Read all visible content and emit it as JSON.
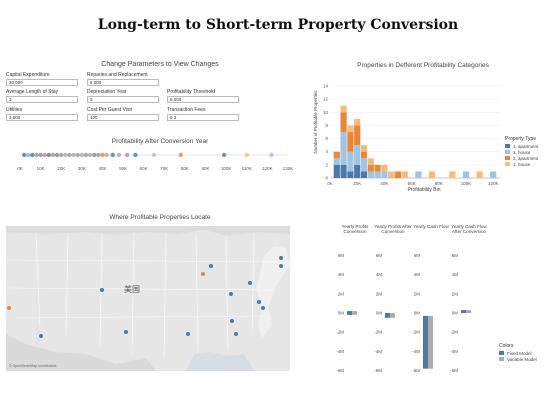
{
  "title": "Long-term to Short-term Property Conversion",
  "params": {
    "heading": "Change Parameters to View Changes",
    "fields": [
      {
        "label": "Capital Expenditure",
        "value": "30,000"
      },
      {
        "label": "Reparies and Replacement",
        "value": "6,000"
      },
      {
        "label": "Average Length of Stay",
        "value": "3"
      },
      {
        "label": "Depreciation Year",
        "value": "5"
      },
      {
        "label": "Profitability Threshold",
        "value": "8,000"
      },
      {
        "label": "Utilities",
        "value": "3,600"
      },
      {
        "label": "Cost Per Guest Visit",
        "value": "100"
      },
      {
        "label": "Transaction Fees",
        "value": "0.3"
      }
    ]
  },
  "strip": {
    "heading": "Profitability After Conversion Year",
    "ticks": [
      "0K",
      "10K",
      "20K",
      "30K",
      "40K",
      "50K",
      "60K",
      "70K",
      "80K",
      "90K",
      "100K",
      "110K",
      "120K",
      "130K"
    ]
  },
  "histogram": {
    "heading": "Properties in Defferent Profitability Categories",
    "ylabel": "Number of Profitable Properties",
    "xlabel": "Profitability Bin",
    "legend_title": "Property Type",
    "legend": [
      {
        "name": "1, apartment",
        "color": "#4e79a7"
      },
      {
        "name": "1, house",
        "color": "#a0c4e4"
      },
      {
        "name": "2, apartment",
        "color": "#e8873a"
      },
      {
        "name": "2, house",
        "color": "#f5bb7c"
      }
    ],
    "yticks": [
      "0",
      "2",
      "4",
      "6",
      "8",
      "10",
      "12",
      "14"
    ],
    "xticks": [
      "0K",
      "20K",
      "40K",
      "60K",
      "80K",
      "100K",
      "120K"
    ]
  },
  "map": {
    "heading": "Where Profitable Properties Locate",
    "country_label": "美国",
    "attribution": "© OpenStreetMap contributors"
  },
  "cashflow": {
    "columns": [
      "Yearly Profits Conversion",
      "Yearly Profits After Conversion",
      "Yearly Cash Flow",
      "Yearly Cash Flow After Conversion"
    ],
    "yticks": [
      "6M",
      "4M",
      "2M",
      "0M",
      "-2M",
      "-4M",
      "-6M"
    ],
    "legend_title": "Colors",
    "legend": [
      {
        "name": "Fixed Model",
        "color": "#4e79a7"
      },
      {
        "name": "Variable Model",
        "color": "#b0aaa6"
      }
    ]
  },
  "chart_data": [
    {
      "type": "bar",
      "title": "Properties in Defferent Profitability Categories",
      "xlabel": "Profitability Bin",
      "ylabel": "Number of Profitable Properties",
      "ylim": [
        0,
        14
      ],
      "x": [
        5000,
        10000,
        15000,
        20000,
        25000,
        30000,
        35000,
        40000,
        45000,
        50000,
        55000,
        65000,
        75000,
        90000,
        100000,
        110000,
        120000
      ],
      "series": [
        {
          "name": "1, apartment",
          "values": [
            2,
            2,
            1,
            2,
            1,
            0,
            0,
            0,
            0,
            0,
            0,
            0,
            0,
            0,
            0,
            0,
            0
          ]
        },
        {
          "name": "1, house",
          "values": [
            1,
            5,
            3,
            3,
            2,
            1,
            1,
            1,
            0,
            0,
            0,
            1,
            0,
            0,
            1,
            0,
            1
          ]
        },
        {
          "name": "2, apartment",
          "values": [
            1,
            3,
            3,
            3,
            1,
            1,
            1,
            0,
            0,
            1,
            0,
            0,
            0,
            0,
            0,
            0,
            0
          ]
        },
        {
          "name": "2, house",
          "values": [
            0,
            1,
            1,
            1,
            1,
            1,
            0,
            1,
            1,
            0,
            1,
            0,
            1,
            1,
            0,
            1,
            0
          ]
        }
      ]
    }
  ]
}
